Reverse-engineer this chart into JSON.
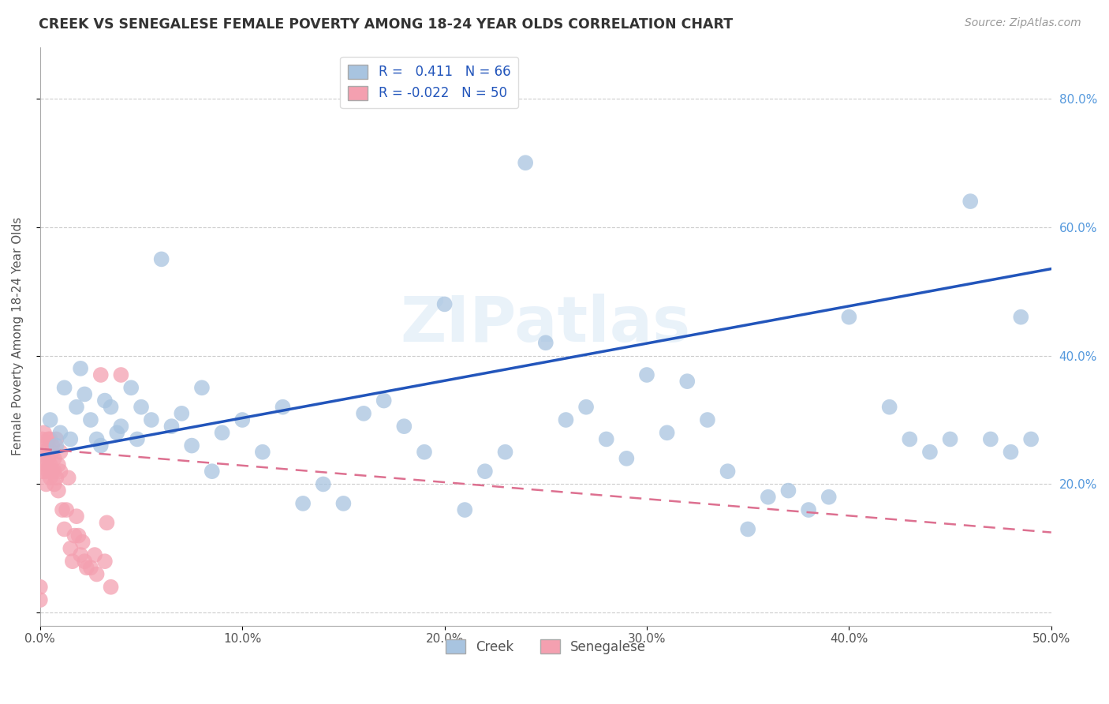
{
  "title": "CREEK VS SENEGALESE FEMALE POVERTY AMONG 18-24 YEAR OLDS CORRELATION CHART",
  "source": "Source: ZipAtlas.com",
  "ylabel": "Female Poverty Among 18-24 Year Olds",
  "xlim": [
    0.0,
    0.5
  ],
  "ylim": [
    -0.02,
    0.88
  ],
  "xticks": [
    0.0,
    0.1,
    0.2,
    0.3,
    0.4,
    0.5
  ],
  "xticklabels": [
    "0.0%",
    "10.0%",
    "20.0%",
    "30.0%",
    "40.0%",
    "50.0%"
  ],
  "yticks": [
    0.0,
    0.2,
    0.4,
    0.6,
    0.8
  ],
  "yticklabels_right": [
    "",
    "20.0%",
    "40.0%",
    "60.0%",
    "80.0%"
  ],
  "creek_color": "#a8c4e0",
  "senegalese_color": "#f4a0b0",
  "creek_line_color": "#2255bb",
  "senegalese_line_color": "#dd7090",
  "creek_R": 0.411,
  "creek_N": 66,
  "senegalese_R": -0.022,
  "senegalese_N": 50,
  "legend_label_creek": "Creek",
  "legend_label_senegalese": "Senegalese",
  "watermark": "ZIPatlas",
  "creek_line_x0": 0.0,
  "creek_line_y0": 0.245,
  "creek_line_x1": 0.5,
  "creek_line_y1": 0.535,
  "sene_line_x0": 0.0,
  "sene_line_y0": 0.255,
  "sene_line_x1": 0.5,
  "sene_line_y1": 0.125,
  "creek_x": [
    0.005,
    0.008,
    0.01,
    0.012,
    0.015,
    0.018,
    0.02,
    0.022,
    0.025,
    0.028,
    0.03,
    0.032,
    0.035,
    0.038,
    0.04,
    0.045,
    0.048,
    0.05,
    0.055,
    0.06,
    0.065,
    0.07,
    0.075,
    0.08,
    0.085,
    0.09,
    0.1,
    0.11,
    0.12,
    0.13,
    0.14,
    0.15,
    0.16,
    0.17,
    0.18,
    0.19,
    0.2,
    0.21,
    0.22,
    0.23,
    0.24,
    0.25,
    0.26,
    0.27,
    0.28,
    0.29,
    0.3,
    0.31,
    0.32,
    0.33,
    0.34,
    0.35,
    0.36,
    0.37,
    0.38,
    0.39,
    0.4,
    0.42,
    0.43,
    0.44,
    0.45,
    0.46,
    0.47,
    0.48,
    0.485,
    0.49
  ],
  "creek_y": [
    0.3,
    0.26,
    0.28,
    0.35,
    0.27,
    0.32,
    0.38,
    0.34,
    0.3,
    0.27,
    0.26,
    0.33,
    0.32,
    0.28,
    0.29,
    0.35,
    0.27,
    0.32,
    0.3,
    0.55,
    0.29,
    0.31,
    0.26,
    0.35,
    0.22,
    0.28,
    0.3,
    0.25,
    0.32,
    0.17,
    0.2,
    0.17,
    0.31,
    0.33,
    0.29,
    0.25,
    0.48,
    0.16,
    0.22,
    0.25,
    0.7,
    0.42,
    0.3,
    0.32,
    0.27,
    0.24,
    0.37,
    0.28,
    0.36,
    0.3,
    0.22,
    0.13,
    0.18,
    0.19,
    0.16,
    0.18,
    0.46,
    0.32,
    0.27,
    0.25,
    0.27,
    0.64,
    0.27,
    0.25,
    0.46,
    0.27
  ],
  "senegalese_x": [
    0.0,
    0.0,
    0.001,
    0.001,
    0.001,
    0.002,
    0.002,
    0.002,
    0.003,
    0.003,
    0.003,
    0.004,
    0.004,
    0.004,
    0.005,
    0.005,
    0.005,
    0.006,
    0.006,
    0.006,
    0.007,
    0.007,
    0.007,
    0.008,
    0.008,
    0.009,
    0.009,
    0.01,
    0.01,
    0.011,
    0.012,
    0.013,
    0.014,
    0.015,
    0.016,
    0.017,
    0.018,
    0.019,
    0.02,
    0.021,
    0.022,
    0.023,
    0.025,
    0.027,
    0.028,
    0.03,
    0.032,
    0.033,
    0.035,
    0.04
  ],
  "senegalese_y": [
    0.04,
    0.02,
    0.27,
    0.22,
    0.25,
    0.28,
    0.24,
    0.22,
    0.26,
    0.2,
    0.23,
    0.27,
    0.24,
    0.22,
    0.27,
    0.23,
    0.21,
    0.26,
    0.22,
    0.25,
    0.24,
    0.22,
    0.2,
    0.27,
    0.21,
    0.23,
    0.19,
    0.25,
    0.22,
    0.16,
    0.13,
    0.16,
    0.21,
    0.1,
    0.08,
    0.12,
    0.15,
    0.12,
    0.09,
    0.11,
    0.08,
    0.07,
    0.07,
    0.09,
    0.06,
    0.37,
    0.08,
    0.14,
    0.04,
    0.37
  ]
}
